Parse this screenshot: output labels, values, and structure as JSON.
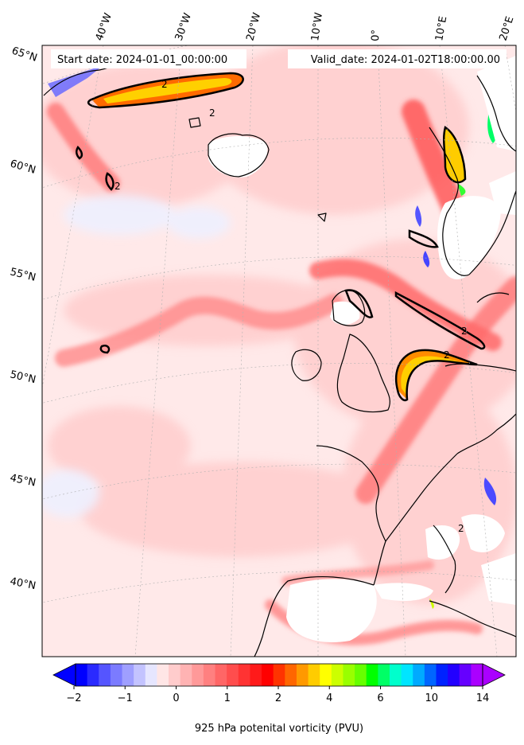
{
  "map": {
    "header": {
      "start_date": "Start date: 2024-01-01_00:00:00",
      "valid_date": "Valid_date: 2024-01-02T18:00:00.00"
    },
    "lon_labels": [
      "40°W",
      "30°W",
      "20°W",
      "10°W",
      "0°",
      "10°E",
      "20°E"
    ],
    "lat_labels": [
      "65°N",
      "60°N",
      "55°N",
      "50°N",
      "45°N",
      "40°N"
    ],
    "contour_label": "2",
    "colorbar": {
      "ticks": [
        "−2",
        "−1",
        "0",
        "1",
        "2",
        "4",
        "6",
        "10",
        "14"
      ],
      "label": "925 hPa potenital vorticity (PVU)",
      "colors": [
        "#0000ff",
        "#2a2aff",
        "#5555ff",
        "#7b7bff",
        "#9f9fff",
        "#c3c3ff",
        "#e6e6ff",
        "#ffe6e6",
        "#ffcccc",
        "#ffb3b3",
        "#ff9999",
        "#ff8080",
        "#ff6666",
        "#ff4d4d",
        "#ff3333",
        "#ff1a1a",
        "#ff0000",
        "#ff3300",
        "#ff6600",
        "#ff9900",
        "#ffcc00",
        "#ffff00",
        "#ccff00",
        "#99ff00",
        "#66ff00",
        "#00ff00",
        "#00ff66",
        "#00ffcc",
        "#00e5ff",
        "#00aaff",
        "#0066ff",
        "#0022ff",
        "#2200ff",
        "#6600ff",
        "#aa00ff"
      ]
    }
  }
}
